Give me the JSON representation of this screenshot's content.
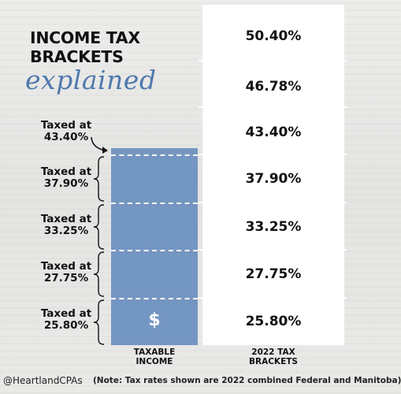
{
  "title": {
    "line1": "INCOME TAX",
    "line2": "BRACKETS",
    "script": "explained"
  },
  "brackets": [
    {
      "rate": "50.40%"
    },
    {
      "rate": "46.78%"
    },
    {
      "rate": "43.40%"
    },
    {
      "rate": "37.90%"
    },
    {
      "rate": "33.25%"
    },
    {
      "rate": "27.75%"
    },
    {
      "rate": "25.80%"
    }
  ],
  "taxed_labels": [
    {
      "line1": "Taxed at",
      "line2": "43.40%"
    },
    {
      "line1": "Taxed at",
      "line2": "37.90%"
    },
    {
      "line1": "Taxed at",
      "line2": "33.25%"
    },
    {
      "line1": "Taxed at",
      "line2": "27.75%"
    },
    {
      "line1": "Taxed at",
      "line2": "25.80%"
    }
  ],
  "income_column": {
    "symbol": "$",
    "label_line1": "TAXABLE",
    "label_line2": "INCOME"
  },
  "brackets_column": {
    "label_line1": "2022 TAX",
    "label_line2": "BRACKETS"
  },
  "footer": {
    "handle": "@HeartlandCPAs",
    "note": "(Note: Tax rates shown are 2022 combined Federal and Manitoba)"
  },
  "colors": {
    "accent_blue": "#7496c2",
    "script_blue": "#4f78ad",
    "text": "#111111",
    "panel": "#ffffff"
  }
}
